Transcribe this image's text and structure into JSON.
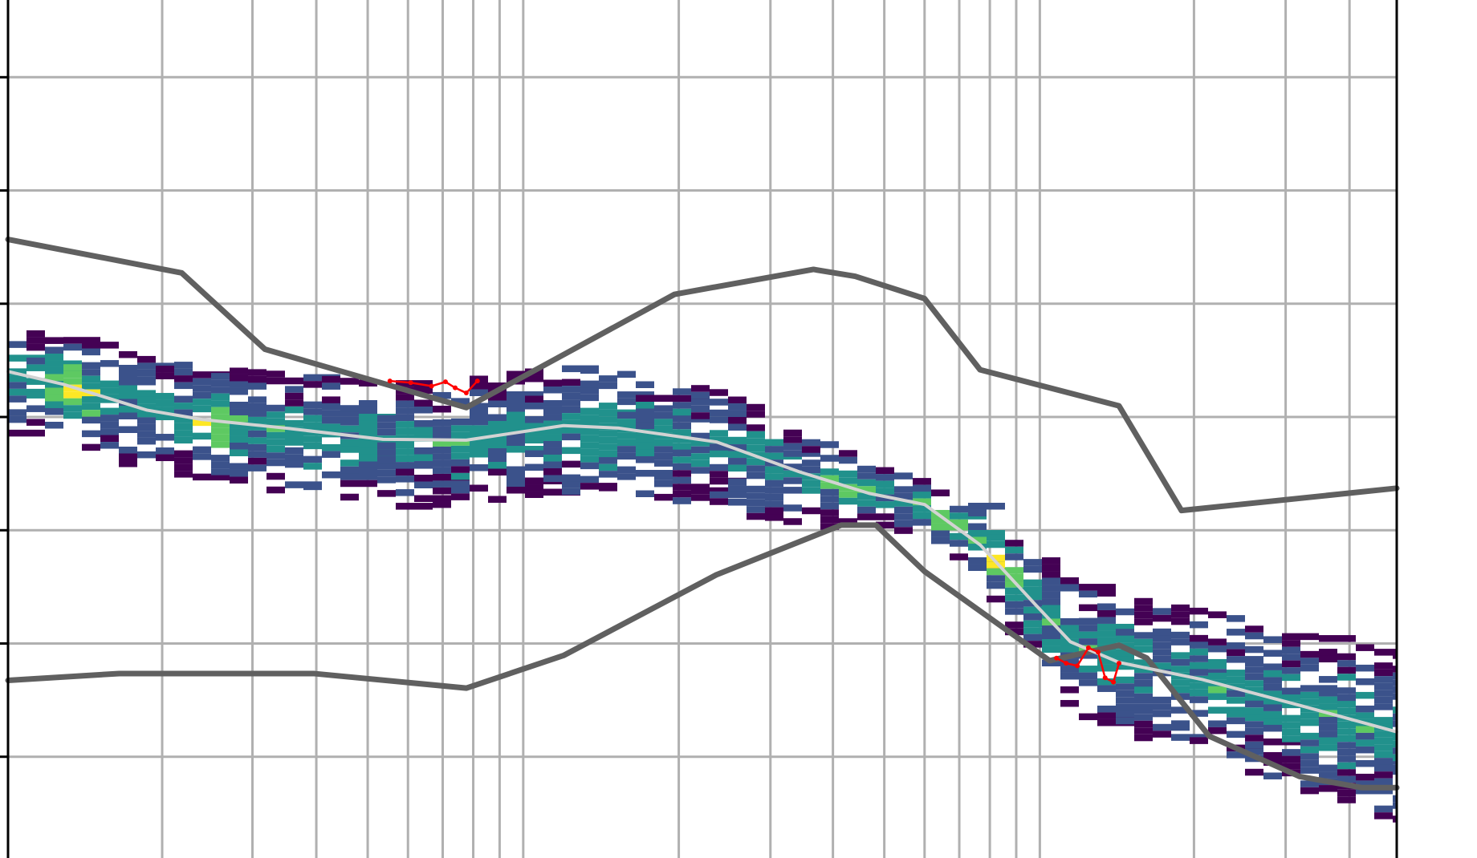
{
  "chart_data": {
    "type": "heatmap",
    "title": "",
    "xlabel": "",
    "ylabel": "",
    "x_scale": "log",
    "x_range_decades": [
      0,
      3
    ],
    "y_range": [
      0,
      1
    ],
    "grid": true,
    "colormap": "viridis",
    "y_major_ticks": [
      0.118,
      0.25,
      0.382,
      0.514,
      0.646,
      0.778,
      0.91
    ],
    "x_gridlines": [
      0.111,
      0.176,
      0.222,
      0.259,
      0.288,
      0.313,
      0.335,
      0.354,
      0.371,
      0.483,
      0.549,
      0.594,
      0.631,
      0.66,
      0.685,
      0.707,
      0.726,
      0.743,
      0.854,
      0.92,
      0.966
    ],
    "envelope_upper": {
      "x": [
        0.0,
        0.125,
        0.185,
        0.33,
        0.48,
        0.58,
        0.61,
        0.66,
        0.7,
        0.8,
        0.845,
        1.0
      ],
      "y": [
        0.721,
        0.682,
        0.593,
        0.525,
        0.657,
        0.686,
        0.678,
        0.652,
        0.569,
        0.527,
        0.405,
        0.431
      ]
    },
    "envelope_lower": {
      "x": [
        0.0,
        0.08,
        0.22,
        0.33,
        0.4,
        0.51,
        0.6,
        0.625,
        0.66,
        0.75,
        0.8,
        0.82,
        0.865,
        0.93,
        0.975,
        1.0
      ],
      "y": [
        0.207,
        0.215,
        0.215,
        0.198,
        0.236,
        0.33,
        0.388,
        0.388,
        0.334,
        0.23,
        0.248,
        0.233,
        0.142,
        0.095,
        0.082,
        0.082
      ]
    },
    "median_line": {
      "x": [
        0.0,
        0.04,
        0.1,
        0.14,
        0.2,
        0.27,
        0.33,
        0.4,
        0.44,
        0.51,
        0.57,
        0.62,
        0.66,
        0.7,
        0.74,
        0.765,
        0.8,
        0.86,
        0.93,
        1.0
      ],
      "y": [
        0.567,
        0.552,
        0.522,
        0.511,
        0.501,
        0.488,
        0.487,
        0.504,
        0.501,
        0.485,
        0.45,
        0.425,
        0.412,
        0.365,
        0.295,
        0.252,
        0.228,
        0.208,
        0.178,
        0.147
      ]
    },
    "density_band": {
      "center": {
        "x": [
          0.0,
          0.04,
          0.1,
          0.14,
          0.2,
          0.27,
          0.33,
          0.4,
          0.44,
          0.51,
          0.57,
          0.62,
          0.66,
          0.7,
          0.74,
          0.765,
          0.8,
          0.86,
          0.93,
          1.0
        ],
        "y": [
          0.56,
          0.548,
          0.52,
          0.508,
          0.497,
          0.484,
          0.487,
          0.5,
          0.497,
          0.48,
          0.445,
          0.425,
          0.41,
          0.37,
          0.3,
          0.252,
          0.228,
          0.205,
          0.175,
          0.14
        ]
      },
      "half_width": {
        "x": [
          0.0,
          0.2,
          0.4,
          0.55,
          0.63,
          0.68,
          0.74,
          0.8,
          1.0
        ],
        "y": [
          0.06,
          0.07,
          0.075,
          0.065,
          0.035,
          0.03,
          0.07,
          0.08,
          0.1
        ]
      },
      "peak_x": [
        0.05,
        0.15,
        0.42,
        0.61,
        0.67,
        0.71
      ],
      "peak_values": [
        1.0,
        0.9,
        0.75,
        0.85,
        1.0,
        0.95
      ]
    },
    "outlier_clusters": [
      {
        "x": [
          0.275,
          0.29,
          0.305,
          0.315,
          0.322,
          0.33,
          0.338
        ],
        "y": [
          0.556,
          0.554,
          0.55,
          0.555,
          0.548,
          0.542,
          0.556
        ]
      },
      {
        "x": [
          0.755,
          0.762,
          0.77,
          0.778,
          0.785,
          0.79,
          0.796,
          0.8
        ],
        "y": [
          0.233,
          0.227,
          0.224,
          0.245,
          0.24,
          0.21,
          0.205,
          0.227
        ]
      }
    ],
    "colors": {
      "grid": "#b0b0b0",
      "axis": "#000000",
      "envelope": "#606060",
      "median": "#d3d3d3",
      "outlier": "#ff0000",
      "viridis": [
        "#440154",
        "#3b528b",
        "#21918c",
        "#5ec962",
        "#fde725"
      ]
    }
  }
}
